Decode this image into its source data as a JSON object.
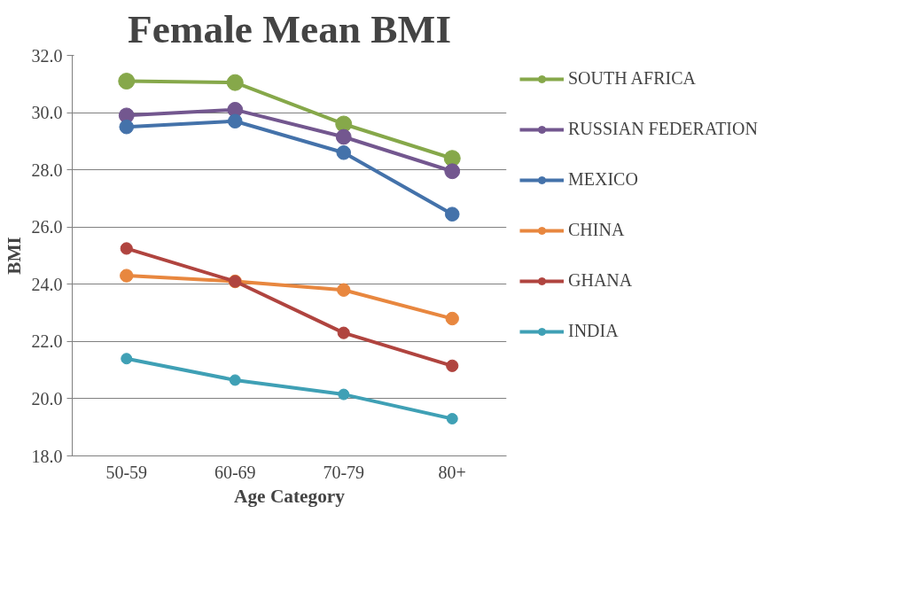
{
  "chart_data": {
    "type": "line",
    "title": "Female Mean BMI",
    "xlabel": "Age Category",
    "ylabel": "BMI",
    "categories": [
      "50-59",
      "60-69",
      "70-79",
      "80+"
    ],
    "series": [
      {
        "name": "SOUTH AFRICA",
        "color": "#86a84a",
        "values": [
          31.1,
          31.05,
          29.6,
          28.4
        ]
      },
      {
        "name": "RUSSIAN FEDERATION",
        "color": "#73578f",
        "values": [
          29.9,
          30.1,
          29.15,
          27.95
        ]
      },
      {
        "name": "MEXICO",
        "color": "#4472aa",
        "values": [
          29.5,
          29.7,
          28.6,
          26.45
        ]
      },
      {
        "name": "CHINA",
        "color": "#e8873f",
        "values": [
          24.3,
          24.1,
          23.8,
          22.8
        ]
      },
      {
        "name": "GHANA",
        "color": "#b0443f",
        "values": [
          25.25,
          24.1,
          22.3,
          21.15
        ]
      },
      {
        "name": "INDIA",
        "color": "#3fa0b5",
        "values": [
          21.4,
          20.65,
          20.15,
          19.3
        ]
      }
    ],
    "ylim": [
      18,
      32
    ],
    "yticks": [
      {
        "value": 18,
        "label": "18.0"
      },
      {
        "value": 20,
        "label": "20.0"
      },
      {
        "value": 22,
        "label": "22.0"
      },
      {
        "value": 24,
        "label": "24.0"
      },
      {
        "value": 26,
        "label": "26.0"
      },
      {
        "value": 28,
        "label": "28.0"
      },
      {
        "value": 30,
        "label": "30.0"
      },
      {
        "value": 32,
        "label": "32.0"
      }
    ],
    "grid": "y",
    "legend": "right",
    "marker": "circle",
    "line_style": "solid"
  }
}
